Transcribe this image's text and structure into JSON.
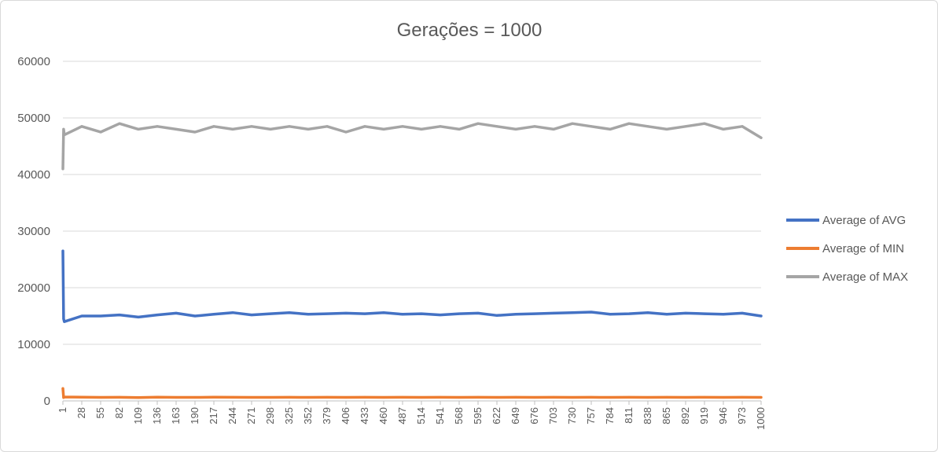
{
  "chart_data": {
    "type": "line",
    "title": "Gerações = 1000",
    "xlabel": "",
    "ylabel": "",
    "ylim": [
      0,
      60000
    ],
    "yticks": [
      0,
      10000,
      20000,
      30000,
      40000,
      50000,
      60000
    ],
    "xlim": [
      1,
      1000
    ],
    "xticks": [
      1,
      28,
      55,
      82,
      109,
      136,
      163,
      190,
      217,
      244,
      271,
      298,
      325,
      352,
      379,
      406,
      433,
      460,
      487,
      514,
      541,
      568,
      595,
      622,
      649,
      676,
      703,
      730,
      757,
      784,
      811,
      838,
      865,
      892,
      919,
      946,
      973,
      1000
    ],
    "grid": "horizontal",
    "legend_position": "right",
    "series": [
      {
        "name": "Average of AVG",
        "color": "#4472c4",
        "x": [
          1,
          2,
          3,
          28,
          55,
          82,
          109,
          136,
          163,
          190,
          217,
          244,
          271,
          298,
          325,
          352,
          379,
          406,
          433,
          460,
          487,
          514,
          541,
          568,
          595,
          622,
          649,
          676,
          703,
          730,
          757,
          784,
          811,
          838,
          865,
          892,
          919,
          946,
          973,
          1000
        ],
        "values": [
          26500,
          14500,
          14000,
          15000,
          15000,
          15200,
          14800,
          15200,
          15500,
          15000,
          15300,
          15600,
          15200,
          15400,
          15600,
          15300,
          15400,
          15500,
          15400,
          15600,
          15300,
          15400,
          15200,
          15400,
          15500,
          15100,
          15300,
          15400,
          15500,
          15600,
          15700,
          15300,
          15400,
          15600,
          15300,
          15500,
          15400,
          15300,
          15500,
          15000
        ]
      },
      {
        "name": "Average of MIN",
        "color": "#ed7d31",
        "x": [
          1,
          2,
          3,
          28,
          55,
          82,
          109,
          136,
          163,
          190,
          217,
          244,
          271,
          298,
          325,
          352,
          379,
          406,
          433,
          460,
          487,
          514,
          541,
          568,
          595,
          622,
          649,
          676,
          703,
          730,
          757,
          784,
          811,
          838,
          865,
          892,
          919,
          946,
          973,
          1000
        ],
        "values": [
          2200,
          600,
          700,
          650,
          620,
          640,
          600,
          650,
          630,
          620,
          650,
          640,
          620,
          630,
          640,
          630,
          640,
          630,
          640,
          630,
          640,
          630,
          640,
          630,
          640,
          630,
          640,
          630,
          640,
          630,
          640,
          630,
          640,
          630,
          640,
          630,
          640,
          630,
          640,
          630
        ]
      },
      {
        "name": "Average of MAX",
        "color": "#a5a5a5",
        "x": [
          1,
          2,
          3,
          28,
          55,
          82,
          109,
          136,
          163,
          190,
          217,
          244,
          271,
          298,
          325,
          352,
          379,
          406,
          433,
          460,
          487,
          514,
          541,
          568,
          595,
          622,
          649,
          676,
          703,
          730,
          757,
          784,
          811,
          838,
          865,
          892,
          919,
          946,
          973,
          1000
        ],
        "values": [
          41000,
          48000,
          47000,
          48500,
          47500,
          49000,
          48000,
          48500,
          48000,
          47500,
          48500,
          48000,
          48500,
          48000,
          48500,
          48000,
          48500,
          47500,
          48500,
          48000,
          48500,
          48000,
          48500,
          48000,
          49000,
          48500,
          48000,
          48500,
          48000,
          49000,
          48500,
          48000,
          49000,
          48500,
          48000,
          48500,
          49000,
          48000,
          48500,
          46500
        ]
      }
    ]
  }
}
